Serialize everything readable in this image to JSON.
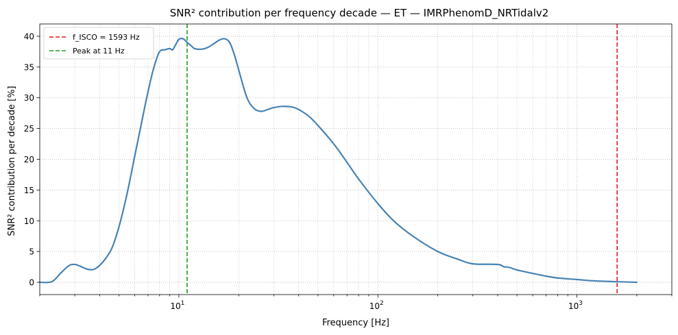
{
  "chart_data": {
    "type": "line",
    "title": "SNR² contribution per frequency decade — ET — IMRPhenomD_NRTidalv2",
    "xlabel": "Frequency [Hz]",
    "ylabel": "SNR² contribution per decade [%]",
    "xscale": "log",
    "xlim": [
      2,
      3000
    ],
    "ylim": [
      -2,
      42
    ],
    "grid": true,
    "legend_position": "top-left",
    "x_ticks": [
      {
        "value": 10,
        "base": "10",
        "exp": "1"
      },
      {
        "value": 100,
        "base": "10",
        "exp": "2"
      },
      {
        "value": 1000,
        "base": "10",
        "exp": "3"
      }
    ],
    "y_ticks": [
      0,
      5,
      10,
      15,
      20,
      25,
      30,
      35,
      40
    ],
    "series": [
      {
        "color": "#4682b4",
        "x": [
          2.0,
          2.3,
          2.55,
          2.8,
          3.0,
          3.2,
          3.5,
          3.8,
          4.2,
          4.6,
          5.0,
          5.5,
          6.0,
          6.5,
          7.0,
          7.5,
          8.0,
          8.5,
          9.0,
          9.3,
          9.7,
          10.0,
          10.5,
          11.0,
          11.5,
          12.0,
          13.0,
          14.0,
          15.0,
          16.0,
          17.0,
          18.0,
          19.0,
          20.0,
          22.0,
          24.0,
          26.0,
          28.0,
          30.0,
          33.0,
          37.0,
          40.0,
          45.0,
          50.0,
          60.0,
          70.0,
          80.0,
          100.0,
          120.0,
          150.0,
          200.0,
          250.0,
          300.0,
          400.0,
          430.0,
          440.0,
          460.0,
          500.0,
          600.0,
          700.0,
          800.0,
          1000.0,
          1200.0,
          1500.0,
          2000.0
        ],
        "y": [
          0.0,
          0.1,
          1.5,
          2.7,
          2.9,
          2.6,
          2.1,
          2.2,
          3.5,
          5.5,
          9.0,
          14.5,
          20.5,
          26.0,
          31.0,
          35.0,
          37.5,
          37.8,
          38.0,
          37.8,
          38.8,
          39.5,
          39.6,
          39.0,
          38.5,
          38.0,
          37.9,
          38.2,
          38.8,
          39.4,
          39.6,
          39.0,
          37.0,
          34.5,
          30.0,
          28.2,
          27.8,
          28.1,
          28.4,
          28.6,
          28.5,
          28.1,
          27.0,
          25.5,
          22.5,
          19.5,
          16.8,
          12.8,
          10.0,
          7.5,
          5.0,
          3.8,
          3.0,
          2.9,
          2.5,
          2.5,
          2.4,
          2.0,
          1.45,
          1.0,
          0.7,
          0.45,
          0.25,
          0.12,
          0.0
        ]
      }
    ],
    "vlines": [
      {
        "name": "f_ISCO = 1593 Hz",
        "x": 1593,
        "color": "#e41a1c"
      },
      {
        "name": "Peak at 11 Hz",
        "x": 11,
        "color": "#1a9e1a"
      }
    ]
  }
}
